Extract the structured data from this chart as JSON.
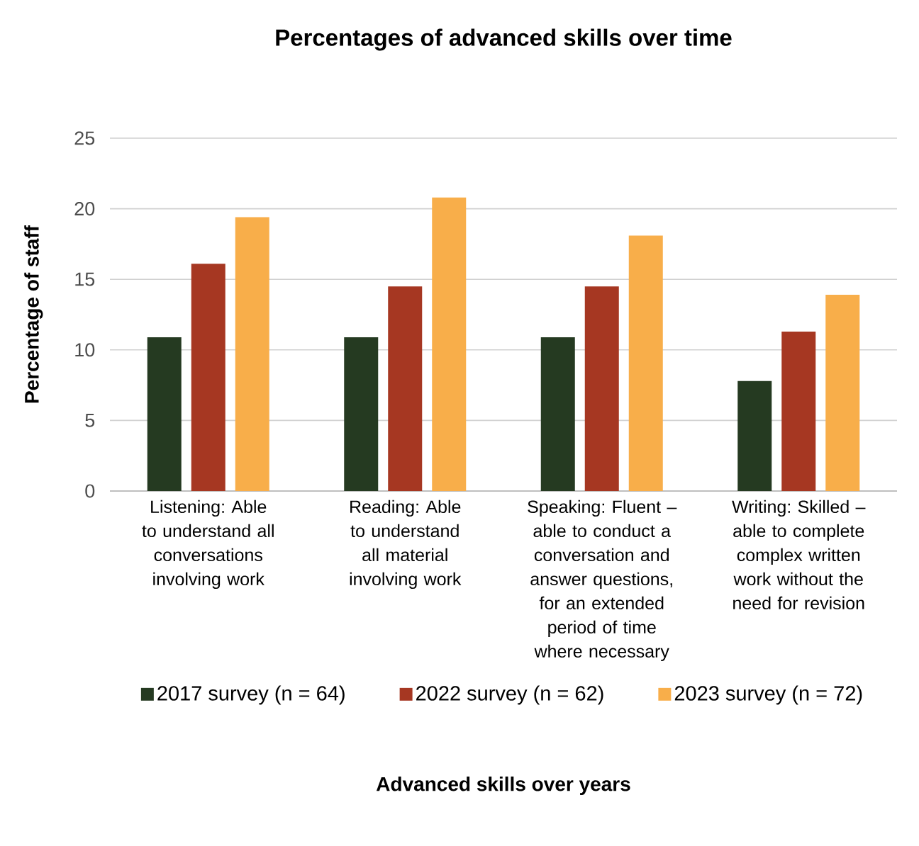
{
  "chart_data": {
    "type": "bar",
    "title": "Percentages of advanced skills over time",
    "annotations": [
      "Advanced skills over years"
    ],
    "ylabel": "Percentage of staff",
    "categories": [
      "Listening: Able to understand all conversations involving work",
      "Reading: Able to understand all material involving work",
      "Speaking: Fluent – able to conduct a conversation and answer questions, for an extended period of time where necessary",
      "Writing: Skilled – able to complete complex written work without the need for revision"
    ],
    "series": [
      {
        "name": "2017 survey (n = 64)",
        "color": "#253a21",
        "values": [
          10.9,
          10.9,
          10.9,
          7.8
        ]
      },
      {
        "name": "2022 survey (n = 62)",
        "color": "#a63722",
        "values": [
          16.1,
          14.5,
          14.5,
          11.3
        ]
      },
      {
        "name": "2023 survey (n = 72)",
        "color": "#f8ae4a",
        "values": [
          19.4,
          20.8,
          18.1,
          13.9
        ]
      }
    ],
    "ylim": [
      0,
      25
    ],
    "yticks": [
      0,
      5,
      10,
      15,
      20,
      25
    ],
    "grid": "y",
    "legend": "bottom"
  }
}
